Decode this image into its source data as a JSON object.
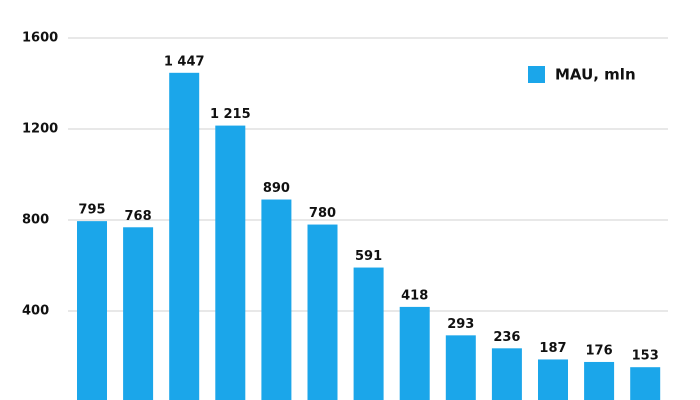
{
  "chart_data": {
    "type": "bar",
    "series": [
      {
        "name": "MAU, mln",
        "color": "#1ba6ea",
        "values": [
          795,
          768,
          1447,
          1215,
          890,
          780,
          591,
          418,
          293,
          236,
          187,
          176,
          153
        ],
        "value_labels": [
          "795",
          "768",
          "1 447",
          "1 215",
          "890",
          "780",
          "591",
          "418",
          "293",
          "236",
          "187",
          "176",
          "153"
        ]
      }
    ],
    "ylim": [
      0,
      1600
    ],
    "yticks": [
      400,
      800,
      1200,
      1600
    ],
    "grid": true,
    "legend": "top-right"
  }
}
